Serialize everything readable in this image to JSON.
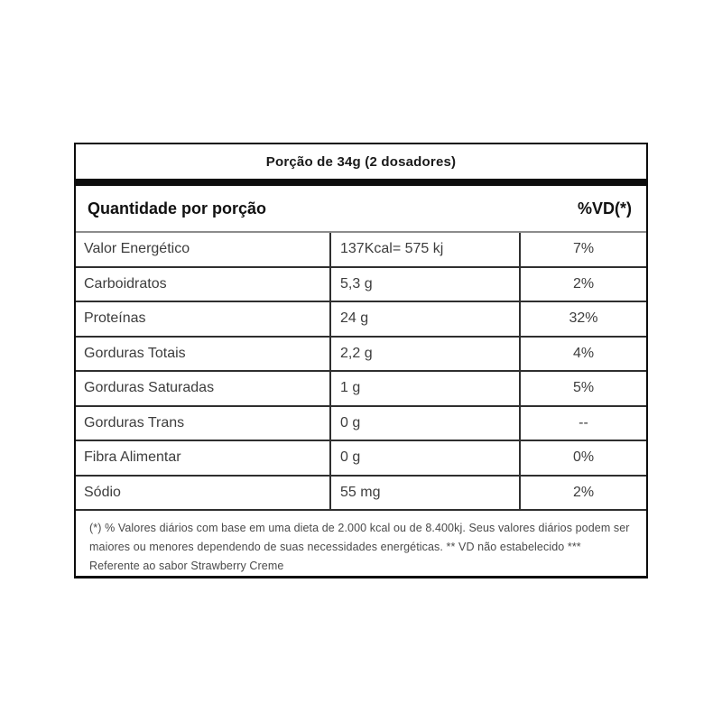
{
  "label": {
    "serving_title": "Porção de 34g (2 dosadores)",
    "header": {
      "quantity_label": "Quantidade por porção",
      "vd_label": "%VD(*)"
    },
    "rows": [
      {
        "name": "Valor Energético",
        "amount": "137Kcal= 575 kj",
        "vd": "7%"
      },
      {
        "name": "Carboidratos",
        "amount": "5,3 g",
        "vd": "2%"
      },
      {
        "name": "Proteínas",
        "amount": "24 g",
        "vd": "32%"
      },
      {
        "name": "Gorduras Totais",
        "amount": "2,2 g",
        "vd": "4%"
      },
      {
        "name": "Gorduras Saturadas",
        "amount": "1 g",
        "vd": "5%"
      },
      {
        "name": "Gorduras Trans",
        "amount": "0 g",
        "vd": "--"
      },
      {
        "name": "Fibra Alimentar",
        "amount": "0 g",
        "vd": "0%"
      },
      {
        "name": "Sódio",
        "amount": "55 mg",
        "vd": "2%"
      }
    ],
    "footnotes": {
      "line1": "(*) % Valores diários com base em uma dieta de 2.000 kcal ou de 8.400kj. Seus valores diários podem ser",
      "line2": "maiores ou menores dependendo de suas necessidades energéticas. ** VD não estabelecido ***",
      "line3": "Referente ao sabor Strawberry Creme"
    },
    "colors": {
      "border": "#0d0d0d",
      "row_line": "#2f2f2f",
      "header_line": "#8c8c8c",
      "text": "#3d3d3d"
    }
  }
}
